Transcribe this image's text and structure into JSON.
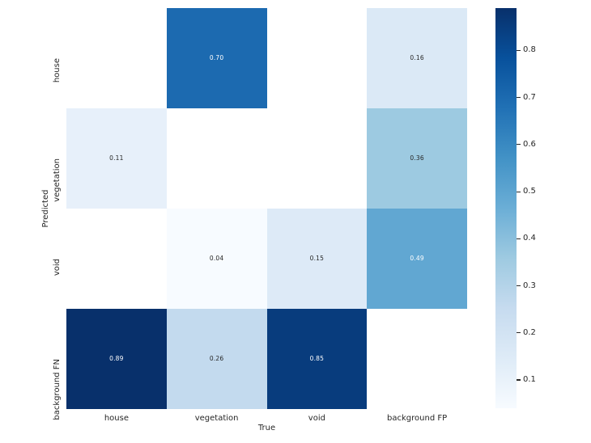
{
  "chart_data": {
    "type": "heatmap",
    "title": "",
    "xlabel": "True",
    "ylabel": "Predicted",
    "x_categories": [
      "house",
      "vegetation",
      "void",
      "background FP"
    ],
    "y_categories": [
      "house",
      "vegetation",
      "void",
      "background FN"
    ],
    "values": [
      [
        null,
        0.7,
        null,
        0.16
      ],
      [
        0.11,
        null,
        null,
        0.36
      ],
      [
        null,
        0.04,
        0.15,
        0.49
      ],
      [
        0.89,
        0.26,
        0.85,
        null
      ]
    ],
    "value_decimals": 2,
    "vmin": 0.04,
    "vmax": 0.89,
    "colormap": "Blues",
    "colormap_stops": [
      "#f7fbff",
      "#deebf7",
      "#c6dbef",
      "#9ecae1",
      "#6baed6",
      "#4292c6",
      "#2171b5",
      "#08519c",
      "#08306b"
    ],
    "masked_cell_color": "#ffffff",
    "annotation_colors": {
      "on_light": "#262626",
      "on_dark": "#ffffff"
    },
    "luminance_threshold": 0.408,
    "colorbar": {
      "ticks": [
        0.1,
        0.2,
        0.3,
        0.4,
        0.5,
        0.6,
        0.7,
        0.8
      ],
      "tick_decimals": 1,
      "position": "right"
    },
    "grid": false,
    "background": "#ffffff",
    "legend": null
  }
}
